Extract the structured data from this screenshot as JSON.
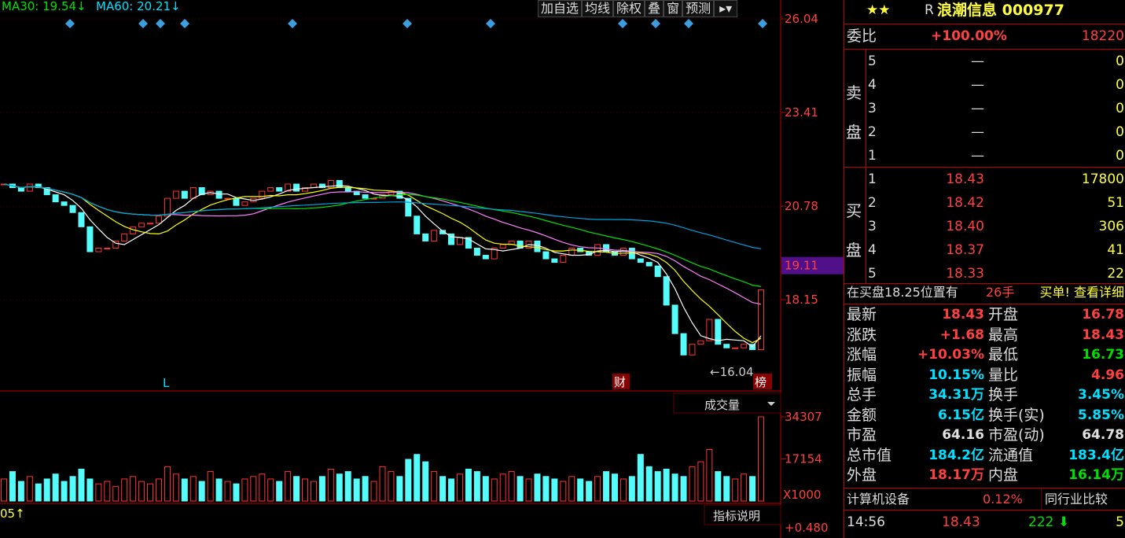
{
  "indicators": [
    "MA30: 19.54↓",
    "MA60: 20.21↓"
  ],
  "toolbar": [
    "加自选",
    "均线",
    "除权",
    "叠",
    "窗",
    "预测"
  ],
  "price_axis": {
    "ylim": [
      15.59,
      26.57
    ],
    "ticks": [
      26.04,
      23.41,
      20.78,
      18.15
    ],
    "current": 19.11
  },
  "candles": {
    "close": [
      21.4,
      21.3,
      21.2,
      21.4,
      21.3,
      21.1,
      20.9,
      20.8,
      20.6,
      20.2,
      19.5,
      19.6,
      19.6,
      19.8,
      20.0,
      20.2,
      20.3,
      20.3,
      20.5,
      21.0,
      21.2,
      21.0,
      21.3,
      21.1,
      21.2,
      21.0,
      21.0,
      20.8,
      20.9,
      21.0,
      21.2,
      21.3,
      21.2,
      21.4,
      21.2,
      21.3,
      21.4,
      21.3,
      21.5,
      21.3,
      21.2,
      21.1,
      21.0,
      21.0,
      21.1,
      21.2,
      21.0,
      20.5,
      20.0,
      19.8,
      20.1,
      20.0,
      19.7,
      19.9,
      19.6,
      19.4,
      19.3,
      19.6,
      19.7,
      19.8,
      19.6,
      19.8,
      19.5,
      19.3,
      19.2,
      19.4,
      19.6,
      19.5,
      19.4,
      19.7,
      19.5,
      19.4,
      19.6,
      19.3,
      19.2,
      19.1,
      18.8,
      18.0,
      17.2,
      16.6,
      16.9,
      17.0,
      17.6,
      16.9,
      16.8,
      16.8,
      16.9,
      16.75,
      18.43
    ]
  },
  "markers": [
    "L",
    "财",
    "榜"
  ],
  "low_label": "←16.04",
  "volume": {
    "title": "成交量",
    "ylim": [
      0,
      43926
    ],
    "ticks": [
      34307,
      17154
    ],
    "unit": "X1000",
    "values": [
      9000,
      12000,
      8000,
      10000,
      7000,
      9000,
      11000,
      8000,
      10000,
      13000,
      9000,
      7000,
      8000,
      6000,
      9000,
      10000,
      8000,
      7000,
      9000,
      14000,
      11000,
      9000,
      10000,
      8000,
      12000,
      9000,
      8000,
      7000,
      9000,
      10000,
      11000,
      9000,
      8000,
      12000,
      10000,
      9000,
      8000,
      10000,
      13000,
      11000,
      12000,
      9000,
      10000,
      8000,
      14000,
      12000,
      10000,
      17000,
      19000,
      16000,
      12000,
      10000,
      9000,
      11000,
      13000,
      12000,
      10000,
      9000,
      11000,
      12000,
      10000,
      9000,
      11000,
      10000,
      9000,
      8000,
      10000,
      9000,
      8000,
      10000,
      12000,
      11000,
      9000,
      10000,
      19000,
      14000,
      12000,
      13000,
      11000,
      10000,
      14000,
      16000,
      21000,
      12000,
      10000,
      9000,
      11000,
      10000,
      34307
    ]
  },
  "indicator_panel": {
    "label": "05↑",
    "button": "指标说明",
    "tick": "+0.480"
  },
  "quote": {
    "stars": "★★",
    "prefix": "R",
    "name": "浪潮信息 000977",
    "weibi": {
      "label": "委比",
      "pct": "+100.00%",
      "val": "18220"
    },
    "sell": {
      "label": [
        "卖",
        "盘"
      ],
      "rows": [
        [
          "5",
          "—",
          "0"
        ],
        [
          "4",
          "—",
          "0"
        ],
        [
          "3",
          "—",
          "0"
        ],
        [
          "2",
          "—",
          "0"
        ],
        [
          "1",
          "—",
          "0"
        ]
      ]
    },
    "buy": {
      "label": [
        "买",
        "盘"
      ],
      "rows": [
        [
          "1",
          "18.43",
          "17800"
        ],
        [
          "2",
          "18.42",
          "51"
        ],
        [
          "3",
          "18.40",
          "306"
        ],
        [
          "4",
          "18.37",
          "41"
        ],
        [
          "5",
          "18.33",
          "22"
        ]
      ]
    },
    "notice": [
      "在买盘18.25位置有",
      "26手",
      "买单! 查看详细"
    ],
    "stats": [
      [
        [
          "最新",
          "18.43",
          "#ff4040"
        ],
        [
          "开盘",
          "16.78",
          "#ff4040"
        ]
      ],
      [
        [
          "涨跌",
          "+1.68",
          "#ff4040"
        ],
        [
          "最高",
          "18.43",
          "#ff4040"
        ]
      ],
      [
        [
          "涨幅",
          "+10.03%",
          "#ff4040"
        ],
        [
          "最低",
          "16.73",
          "#00e000"
        ]
      ],
      [
        [
          "振幅",
          "10.15%",
          "#00e0ff"
        ],
        [
          "量比",
          "4.96",
          "#ff4040"
        ]
      ],
      [
        [
          "总手",
          "34.31万",
          "#00e0ff"
        ],
        [
          "换手",
          "3.45%",
          "#00e0ff"
        ]
      ],
      [
        [
          "金额",
          "6.15亿",
          "#00e0ff"
        ],
        [
          "换手(实)",
          "5.85%",
          "#00e0ff"
        ]
      ],
      [
        [
          "市盈",
          "64.16",
          "#e0e0e0"
        ],
        [
          "市盈(动)",
          "64.78",
          "#e0e0e0"
        ]
      ],
      [
        [
          "总市值",
          "184.2亿",
          "#00e0ff"
        ],
        [
          "流通值",
          "183.4亿",
          "#00e0ff"
        ]
      ],
      [
        [
          "外盘",
          "18.17万",
          "#ff4040"
        ],
        [
          "内盘",
          "16.14万",
          "#00e000"
        ]
      ]
    ],
    "industry": [
      "计算机设备",
      "0.12%",
      "同行业比较"
    ],
    "tick": [
      "14:56",
      "18.43",
      "222",
      "5"
    ]
  }
}
